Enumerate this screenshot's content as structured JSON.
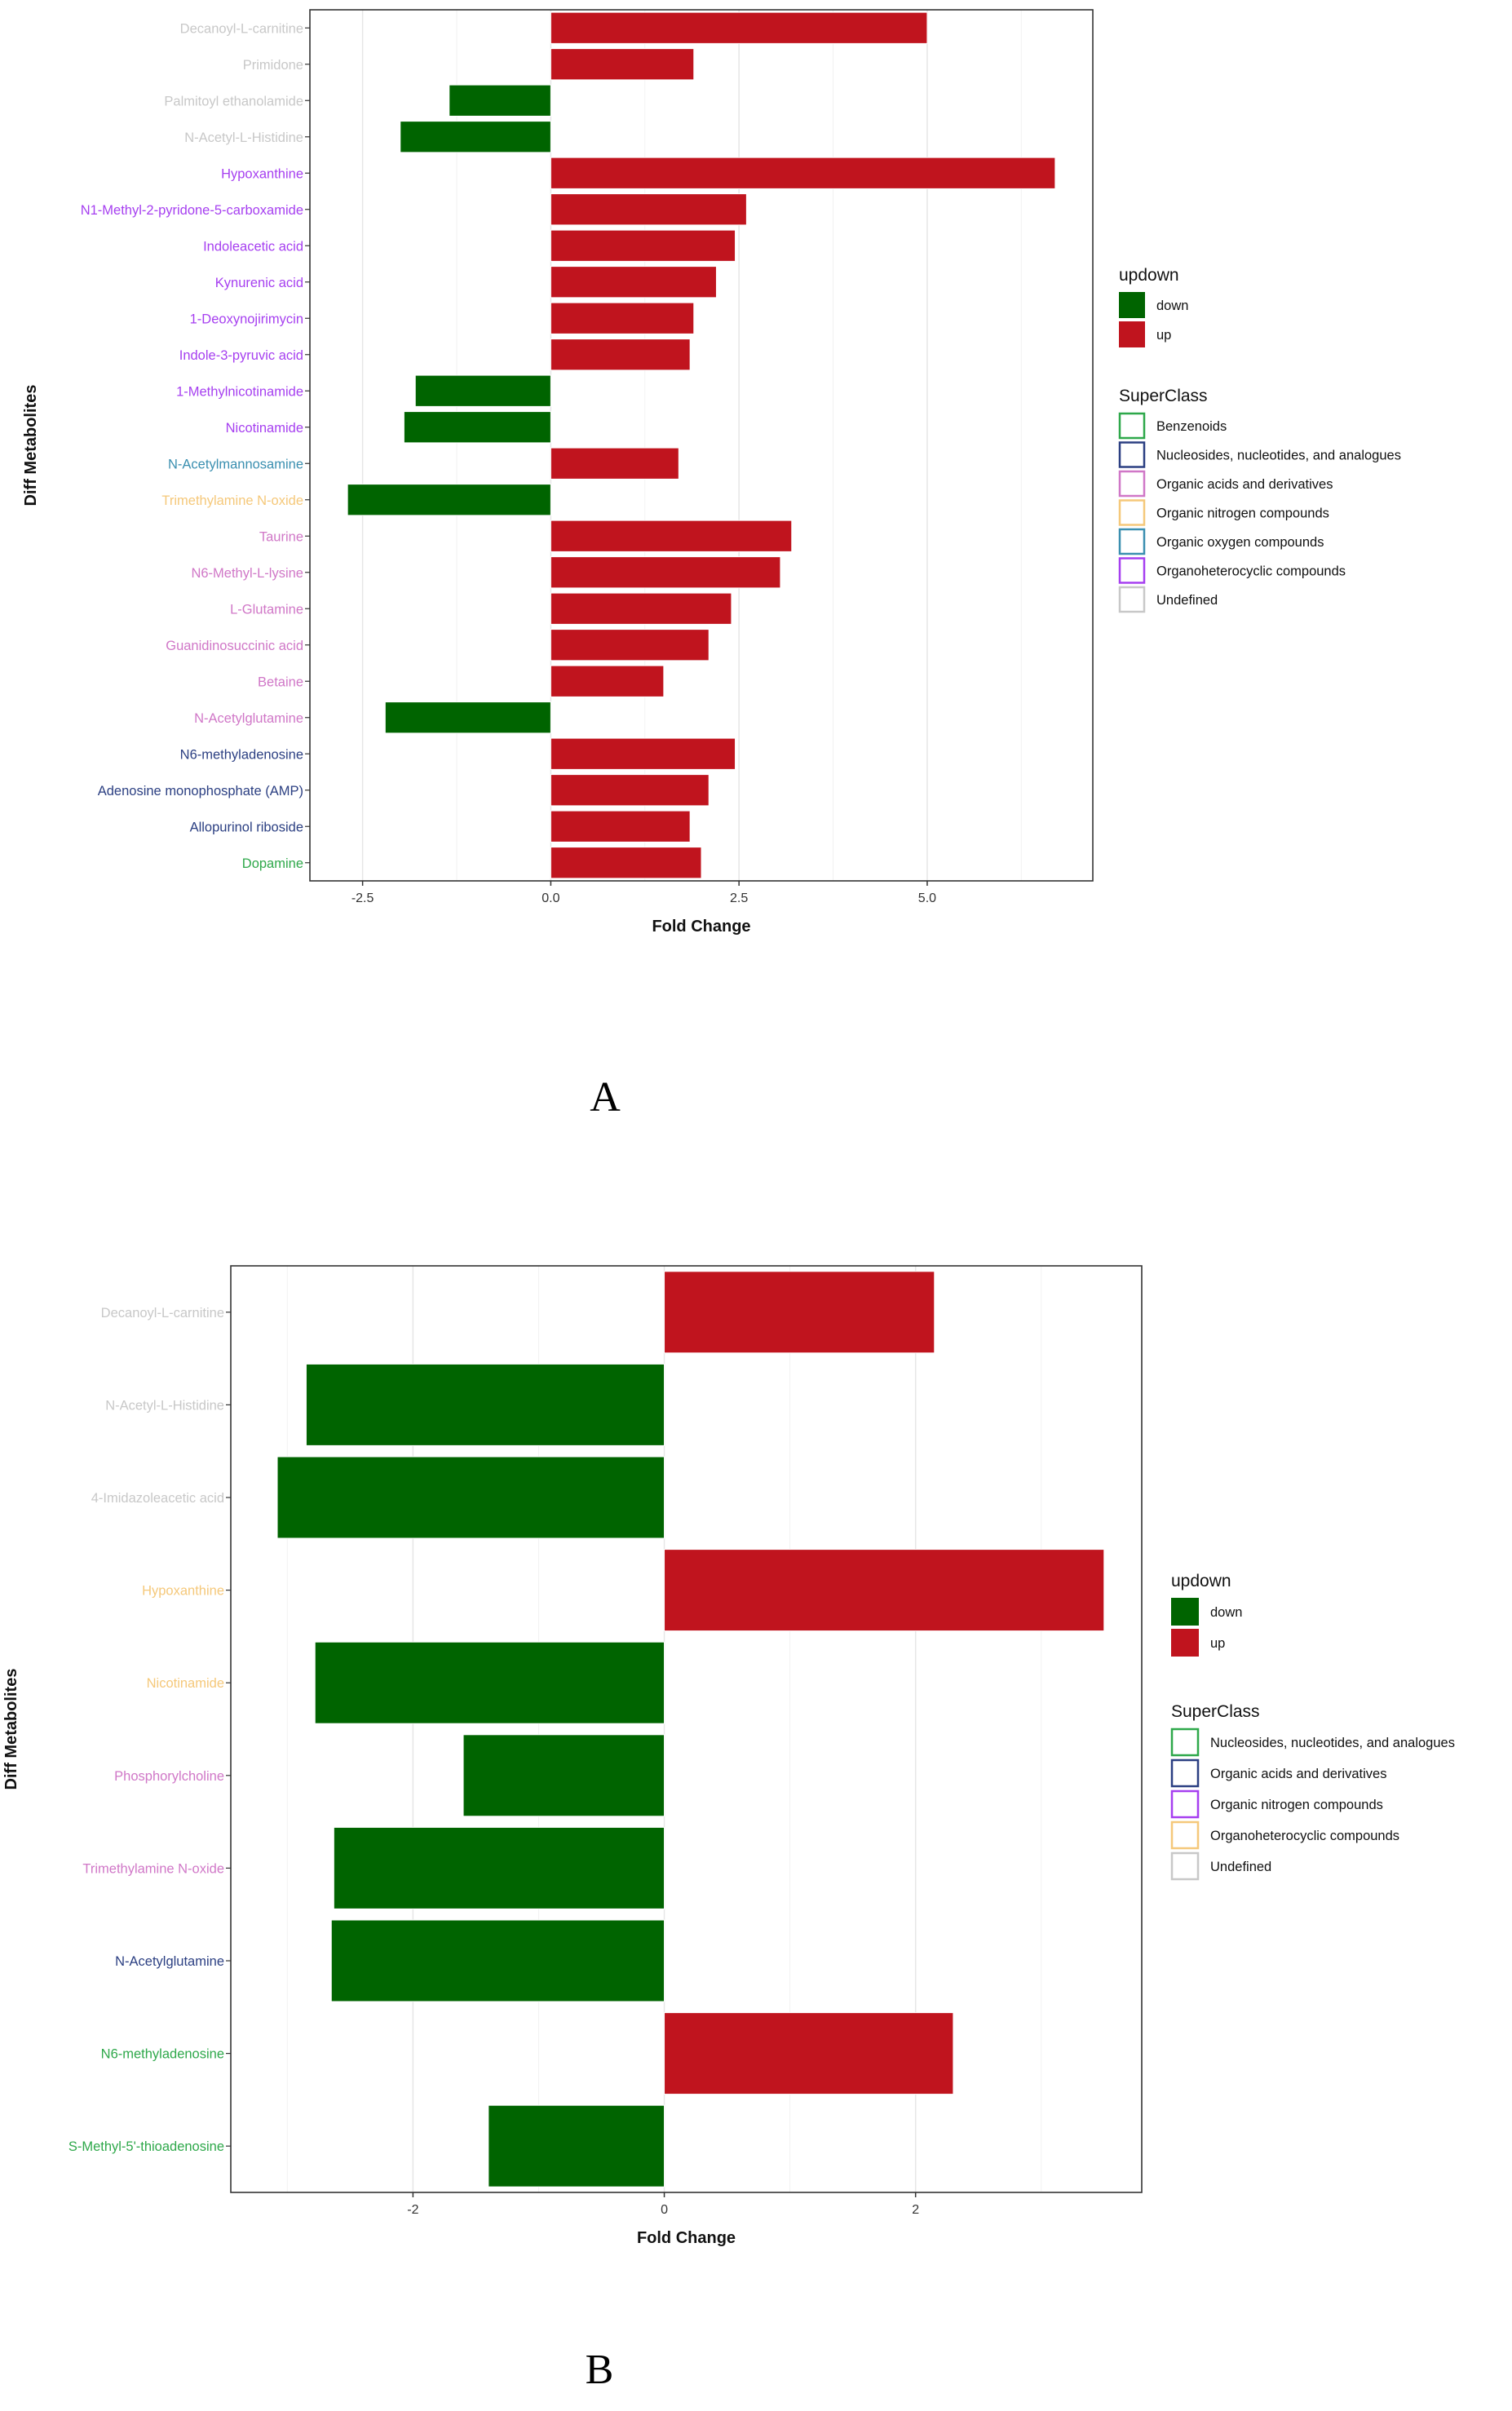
{
  "colors": {
    "up": "#c0141e",
    "down": "#006400",
    "panel_border": "#333333",
    "grid": "#e6e6e6"
  },
  "chart_data": [
    {
      "type": "bar",
      "orientation": "horizontal",
      "panel_label": "A",
      "xlabel": "Fold Change",
      "ylabel": "Diff Metabolites",
      "xlim": [
        -3.2,
        7.2
      ],
      "xticks": [
        -2.5,
        0,
        2.5,
        5
      ],
      "xtick_labels": [
        "-2.5",
        "0.0",
        "2.5",
        "5.0"
      ],
      "categories": [
        {
          "name": "Decanoyl-L-carnitine",
          "value": 5.0,
          "color": "#c8c8c8"
        },
        {
          "name": "Primidone",
          "value": 1.9,
          "color": "#c8c8c8"
        },
        {
          "name": "Palmitoyl ethanolamide",
          "value": -1.35,
          "color": "#c8c8c8"
        },
        {
          "name": "N-Acetyl-L-Histidine",
          "value": -2.0,
          "color": "#c8c8c8"
        },
        {
          "name": "Hypoxanthine",
          "value": 6.7,
          "color": "#a63ff0"
        },
        {
          "name": "N1-Methyl-2-pyridone-5-carboxamide",
          "value": 2.6,
          "color": "#a63ff0"
        },
        {
          "name": "Indoleacetic acid",
          "value": 2.45,
          "color": "#a63ff0"
        },
        {
          "name": "Kynurenic acid",
          "value": 2.2,
          "color": "#a63ff0"
        },
        {
          "name": "1-Deoxynojirimycin",
          "value": 1.9,
          "color": "#a63ff0"
        },
        {
          "name": "Indole-3-pyruvic acid",
          "value": 1.85,
          "color": "#a63ff0"
        },
        {
          "name": "1-Methylnicotinamide",
          "value": -1.8,
          "color": "#a63ff0"
        },
        {
          "name": "Nicotinamide",
          "value": -1.95,
          "color": "#a63ff0"
        },
        {
          "name": "N-Acetylmannosamine",
          "value": 1.7,
          "color": "#3a8fb0"
        },
        {
          "name": "Trimethylamine N-oxide",
          "value": -2.7,
          "color": "#f5c87a"
        },
        {
          "name": "Taurine",
          "value": 3.2,
          "color": "#d077c7"
        },
        {
          "name": "N6-Methyl-L-lysine",
          "value": 3.05,
          "color": "#d077c7"
        },
        {
          "name": "L-Glutamine",
          "value": 2.4,
          "color": "#d077c7"
        },
        {
          "name": "Guanidinosuccinic acid",
          "value": 2.1,
          "color": "#d077c7"
        },
        {
          "name": "Betaine",
          "value": 1.5,
          "color": "#d077c7"
        },
        {
          "name": "N-Acetylglutamine",
          "value": -2.2,
          "color": "#d077c7"
        },
        {
          "name": "N6-methyladenosine",
          "value": 2.45,
          "color": "#2b3f82"
        },
        {
          "name": "Adenosine monophosphate (AMP)",
          "value": 2.1,
          "color": "#2b3f82"
        },
        {
          "name": "Allopurinol riboside",
          "value": 1.85,
          "color": "#2b3f82"
        },
        {
          "name": "Dopamine",
          "value": 2.0,
          "color": "#2ea84a"
        }
      ],
      "legend_updown": {
        "title": "updown",
        "items": [
          {
            "label": "down",
            "color": "#006400"
          },
          {
            "label": "up",
            "color": "#c0141e"
          }
        ]
      },
      "legend_superclass": {
        "title": "SuperClass",
        "items": [
          {
            "label": "Benzenoids",
            "color": "#2ea84a"
          },
          {
            "label": "Nucleosides, nucleotides, and analogues",
            "color": "#2b3f82"
          },
          {
            "label": "Organic acids and derivatives",
            "color": "#d077c7"
          },
          {
            "label": "Organic nitrogen compounds",
            "color": "#f5c87a"
          },
          {
            "label": "Organic oxygen compounds",
            "color": "#3a8fb0"
          },
          {
            "label": "Organoheterocyclic compounds",
            "color": "#a63ff0"
          },
          {
            "label": "Undefined",
            "color": "#c8c8c8"
          }
        ]
      },
      "legend_position": "right"
    },
    {
      "type": "bar",
      "orientation": "horizontal",
      "panel_label": "B",
      "xlabel": "Fold Change",
      "ylabel": "Diff Metabolites",
      "xlim": [
        -3.45,
        3.8
      ],
      "xticks": [
        -2,
        0,
        2
      ],
      "xtick_labels": [
        "-2",
        "0",
        "2"
      ],
      "categories": [
        {
          "name": "Decanoyl-L-carnitine",
          "value": 2.15,
          "color": "#c8c8c8"
        },
        {
          "name": "N-Acetyl-L-Histidine",
          "value": -2.85,
          "color": "#c8c8c8"
        },
        {
          "name": "4-Imidazoleacetic acid",
          "value": -3.08,
          "color": "#c8c8c8"
        },
        {
          "name": "Hypoxanthine",
          "value": 3.5,
          "color": "#f5c87a"
        },
        {
          "name": "Nicotinamide",
          "value": -2.78,
          "color": "#f5c87a"
        },
        {
          "name": "Phosphorylcholine",
          "value": -1.6,
          "color": "#d077c7"
        },
        {
          "name": "Trimethylamine N-oxide",
          "value": -2.63,
          "color": "#d077c7"
        },
        {
          "name": "N-Acetylglutamine",
          "value": -2.65,
          "color": "#2b3f82"
        },
        {
          "name": "N6-methyladenosine",
          "value": 2.3,
          "color": "#2ea84a"
        },
        {
          "name": "S-Methyl-5'-thioadenosine",
          "value": -1.4,
          "color": "#2ea84a"
        }
      ],
      "legend_updown": {
        "title": "updown",
        "items": [
          {
            "label": "down",
            "color": "#006400"
          },
          {
            "label": "up",
            "color": "#c0141e"
          }
        ]
      },
      "legend_superclass": {
        "title": "SuperClass",
        "items": [
          {
            "label": "Nucleosides, nucleotides, and analogues",
            "color": "#2ea84a"
          },
          {
            "label": "Organic acids and derivatives",
            "color": "#2b3f82"
          },
          {
            "label": "Organic nitrogen compounds",
            "color": "#a63ff0"
          },
          {
            "label": "Organoheterocyclic compounds",
            "color": "#f5c87a"
          },
          {
            "label": "Undefined",
            "color": "#c8c8c8"
          }
        ]
      },
      "legend_position": "right"
    }
  ]
}
